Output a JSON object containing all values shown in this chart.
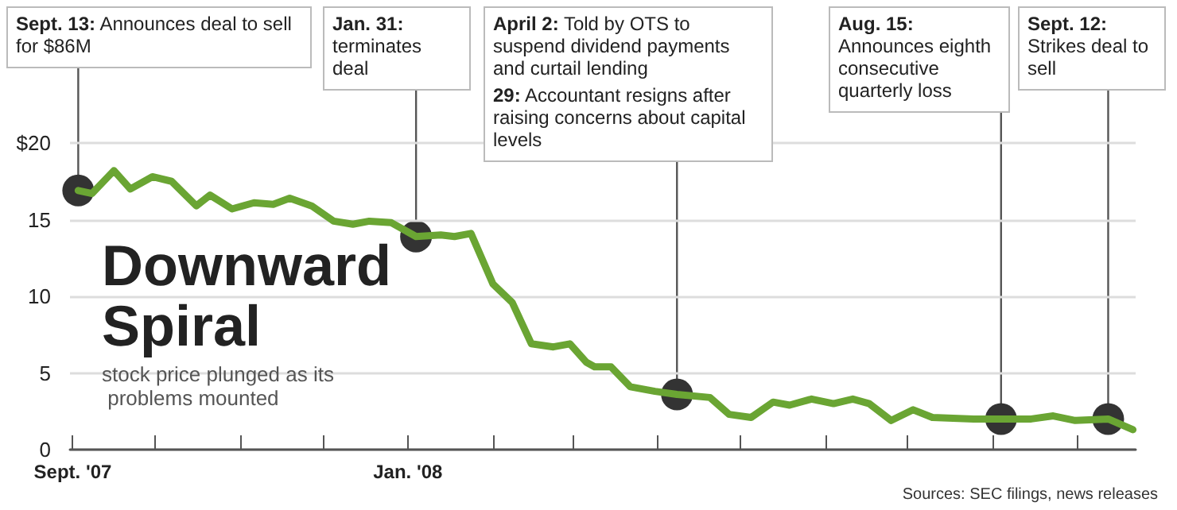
{
  "chart_data": {
    "type": "line",
    "title": "Downward Spiral",
    "subtitle": "stock price plunged as its problems mounted",
    "x": [
      "2007-09-03",
      "2007-09-08",
      "2007-09-16",
      "2007-09-22",
      "2007-09-30",
      "2007-10-07",
      "2007-10-16",
      "2007-10-21",
      "2007-10-29",
      "2007-11-06",
      "2007-11-13",
      "2007-11-19",
      "2007-11-27",
      "2007-12-05",
      "2007-12-12",
      "2007-12-18",
      "2007-12-26",
      "2008-01-04",
      "2008-01-13",
      "2008-01-18",
      "2008-01-24",
      "2008-02-01",
      "2008-02-08",
      "2008-02-15",
      "2008-02-23",
      "2008-02-29",
      "2008-03-06",
      "2008-03-09",
      "2008-03-15",
      "2008-03-22",
      "2008-03-31",
      "2008-04-08",
      "2008-04-20",
      "2008-04-27",
      "2008-05-05",
      "2008-05-13",
      "2008-05-19",
      "2008-05-27",
      "2008-06-04",
      "2008-06-11",
      "2008-06-17",
      "2008-06-25",
      "2008-07-03",
      "2008-07-10",
      "2008-07-25",
      "2008-08-04",
      "2008-08-15",
      "2008-08-23",
      "2008-08-31",
      "2008-09-12",
      "2008-09-21"
    ],
    "series": [
      {
        "color": "#6aa533",
        "values": [
          16.9,
          16.7,
          18.2,
          17.0,
          17.8,
          17.5,
          15.9,
          16.6,
          15.7,
          16.1,
          16.0,
          16.4,
          15.9,
          14.9,
          14.7,
          14.9,
          14.8,
          13.9,
          14.0,
          13.9,
          14.1,
          10.8,
          9.6,
          6.9,
          6.7,
          6.9,
          5.7,
          5.4,
          5.4,
          4.1,
          3.8,
          3.6,
          3.4,
          2.3,
          2.1,
          3.1,
          2.9,
          3.3,
          3.0,
          3.3,
          3.0,
          1.9,
          2.6,
          2.1,
          2.0,
          2.0,
          2.0,
          2.2,
          1.9,
          2.0,
          1.3
        ]
      }
    ],
    "xlim": [
      "2007-08-31",
      "2008-09-22"
    ],
    "xticks": [
      {
        "value": "2007-09-01",
        "label": "Sept. '07"
      },
      {
        "value": "2007-10-01",
        "label": null
      },
      {
        "value": "2007-11-01",
        "label": null
      },
      {
        "value": "2007-12-01",
        "label": null
      },
      {
        "value": "2008-01-01",
        "label": "Jan. '08"
      },
      {
        "value": "2008-02-01",
        "label": null
      },
      {
        "value": "2008-03-01",
        "label": null
      },
      {
        "value": "2008-04-01",
        "label": null
      },
      {
        "value": "2008-05-01",
        "label": null
      },
      {
        "value": "2008-06-01",
        "label": null
      },
      {
        "value": "2008-07-01",
        "label": null
      },
      {
        "value": "2008-08-01",
        "label": null
      },
      {
        "value": "2008-09-01",
        "label": null
      }
    ],
    "ylim": [
      0,
      20
    ],
    "yticks": [
      0,
      5,
      10,
      15,
      {
        "value": 20,
        "label": "$20"
      }
    ],
    "grid": "y",
    "marker": "none",
    "line_style": "solid",
    "annotations": [
      {
        "text": "Sept. 13: Announces deal to sell for $86M",
        "x": "2007-09-03",
        "y": 16.9
      },
      {
        "text": "Jan. 31: terminates deal",
        "x": "2008-01-04",
        "y": 13.9
      },
      {
        "text": "April 2: Told by OTS to suspend dividend payments and curtail lending\n29: Accountant resigns after raising concerns about capital levels",
        "x": "2008-04-08",
        "y": 3.6
      },
      {
        "text": "Aug. 15: Announces eighth consecutive quarterly loss",
        "x": "2008-08-04",
        "y": 2.0
      },
      {
        "text": "Sept. 12: Strikes deal to sell",
        "x": "2008-09-12",
        "y": 2.0
      },
      "Sources: SEC filings, news releases"
    ]
  }
}
